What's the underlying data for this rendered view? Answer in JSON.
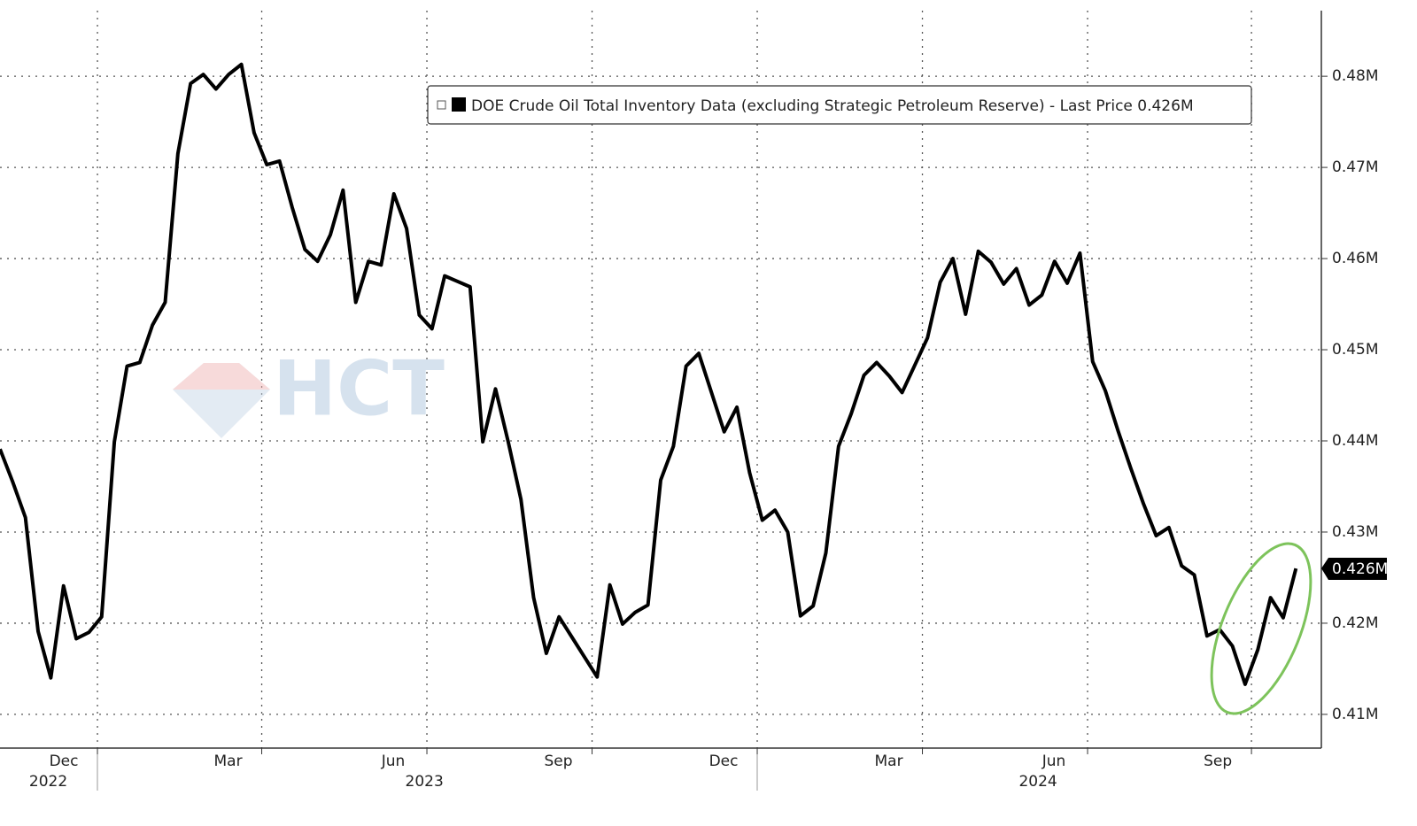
{
  "chart_data": {
    "type": "line",
    "legend_text": "DOE Crude Oil Total Inventory Data (excluding Strategic Petroleum Reserve) - Last Price 0.426M",
    "last_value_label": "0.426M",
    "watermark": "HCT",
    "color": "#000000",
    "grid": true,
    "values": [
      0.4391,
      0.4355,
      0.4316,
      0.4191,
      0.414,
      0.4241,
      0.4183,
      0.419,
      0.4207,
      0.4399,
      0.4482,
      0.4486,
      0.4527,
      0.4552,
      0.4715,
      0.4792,
      0.4802,
      0.4786,
      0.4802,
      0.4813,
      0.4738,
      0.4703,
      0.4707,
      0.4656,
      0.461,
      0.4597,
      0.4626,
      0.4675,
      0.4552,
      0.4597,
      0.4593,
      0.4671,
      0.4633,
      0.4538,
      0.4523,
      0.4581,
      0.4575,
      0.4569,
      0.4399,
      0.4457,
      0.4399,
      0.4336,
      0.4228,
      0.4167,
      0.4207,
      0.4185,
      0.4163,
      0.4141,
      0.4242,
      0.4199,
      0.4212,
      0.422,
      0.4357,
      0.4394,
      0.4482,
      0.4496,
      0.4453,
      0.441,
      0.4437,
      0.4365,
      0.4313,
      0.4324,
      0.43,
      0.4208,
      0.4219,
      0.4277,
      0.4394,
      0.443,
      0.4472,
      0.4486,
      0.4471,
      0.4453,
      0.4483,
      0.4513,
      0.4574,
      0.46,
      0.4539,
      0.4608,
      0.4596,
      0.4572,
      0.4589,
      0.4549,
      0.456,
      0.4597,
      0.4573,
      0.4606,
      0.4487,
      0.4455,
      0.4411,
      0.437,
      0.4331,
      0.4296,
      0.4305,
      0.4263,
      0.4253,
      0.4186,
      0.4193,
      0.4175,
      0.4133,
      0.4171,
      0.4228,
      0.4206,
      0.426
    ],
    "xlim": [
      0,
      104
    ],
    "xticks": [
      {
        "value": 7.67,
        "label": "Dec"
      },
      {
        "value": 20.6,
        "label": "Mar"
      },
      {
        "value": 33.6,
        "label": "Jun"
      },
      {
        "value": 46.6,
        "label": "Sep"
      },
      {
        "value": 59.6,
        "label": "Dec"
      },
      {
        "value": 72.6,
        "label": "Mar"
      },
      {
        "value": 85.6,
        "label": "Jun"
      },
      {
        "value": 98.5,
        "label": "Sep"
      }
    ],
    "year_labels": [
      {
        "value": 3.8,
        "label": "2022"
      },
      {
        "value": 33.4,
        "label": "2023"
      },
      {
        "value": 81.7,
        "label": "2024"
      }
    ],
    "ylim": [
      0.4063,
      0.4872
    ],
    "yticks": [
      {
        "value": 0.41,
        "label": "0.41M"
      },
      {
        "value": 0.42,
        "label": "0.42M"
      },
      {
        "value": 0.43,
        "label": "0.43M"
      },
      {
        "value": 0.44,
        "label": "0.44M"
      },
      {
        "value": 0.45,
        "label": "0.45M"
      },
      {
        "value": 0.46,
        "label": "0.46M"
      },
      {
        "value": 0.47,
        "label": "0.47M"
      },
      {
        "value": 0.48,
        "label": "0.48M"
      }
    ]
  }
}
